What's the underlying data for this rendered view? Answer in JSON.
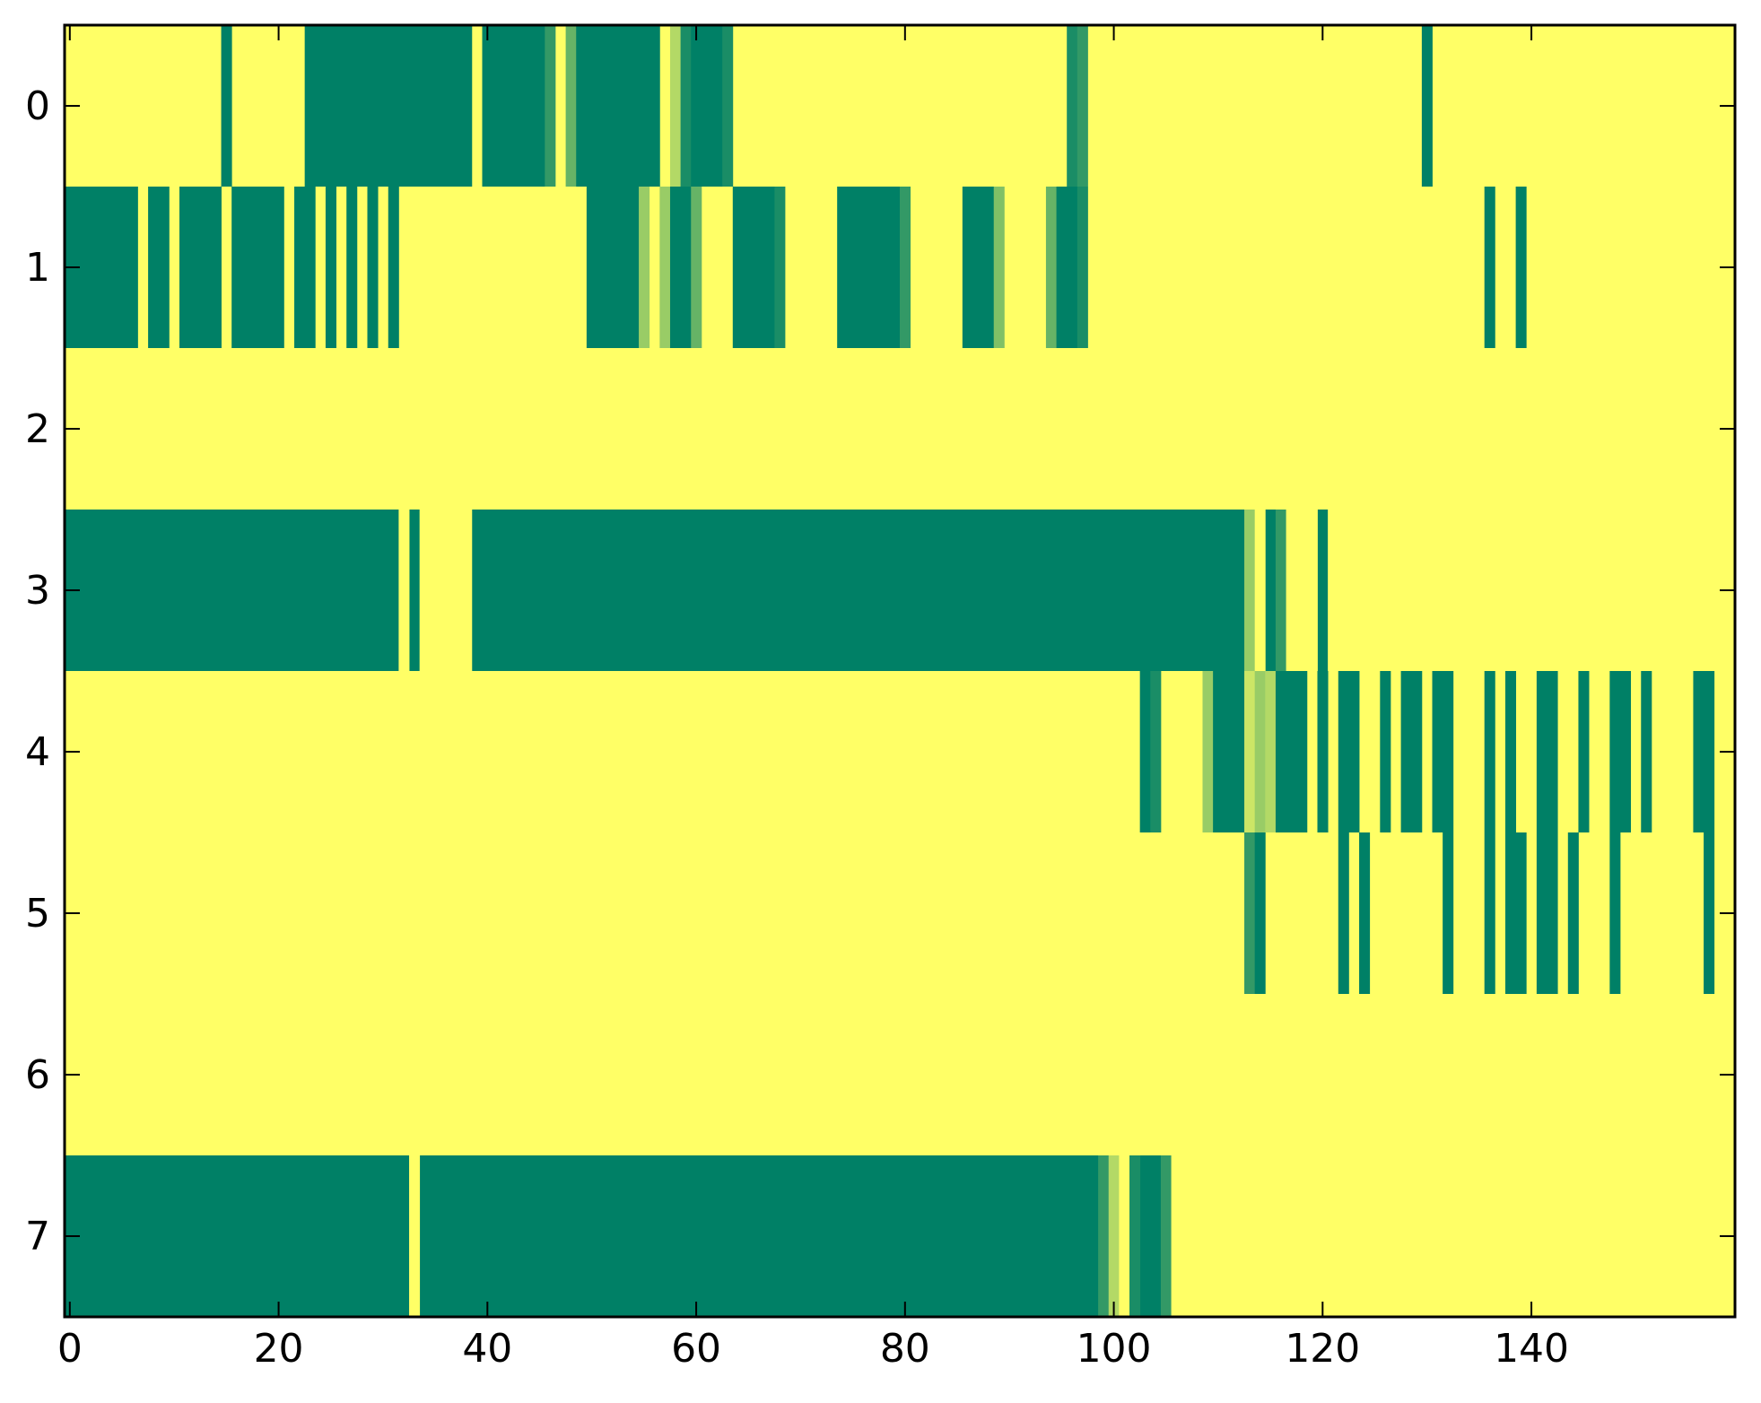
{
  "chart_data": {
    "type": "heatmap",
    "title": "",
    "xlabel": "",
    "ylabel": "",
    "xlim": [
      -0.5,
      159.5
    ],
    "ylim": [
      -0.5,
      7.5
    ],
    "y_inverted": true,
    "grid": false,
    "legend": "none",
    "colormap": "summer_r",
    "colormap_stops": [
      "#ffff66",
      "#008066"
    ],
    "value_range": [
      0,
      1
    ],
    "x_ticks": [
      0,
      20,
      40,
      60,
      80,
      100,
      120,
      140
    ],
    "x_tick_labels": [
      "0",
      "20",
      "40",
      "60",
      "80",
      "100",
      "120",
      "140"
    ],
    "y_ticks": [
      0,
      1,
      2,
      3,
      4,
      5,
      6,
      7
    ],
    "y_tick_labels": [
      "0",
      "1",
      "2",
      "3",
      "4",
      "5",
      "6",
      "7"
    ],
    "rows": [
      {
        "row": 0,
        "default": 0,
        "cells": [
          [
            15,
            15,
            1
          ],
          [
            23,
            38,
            1
          ],
          [
            40,
            45,
            1
          ],
          [
            46,
            46,
            0.8
          ],
          [
            48,
            48,
            0.6
          ],
          [
            49,
            56,
            1
          ],
          [
            58,
            58,
            0.3
          ],
          [
            59,
            59,
            0.9
          ],
          [
            60,
            62,
            1
          ],
          [
            63,
            63,
            0.9
          ],
          [
            96,
            96,
            0.9
          ],
          [
            97,
            97,
            0.8
          ],
          [
            130,
            130,
            1
          ]
        ]
      },
      {
        "row": 1,
        "default": 0,
        "cells": [
          [
            0,
            6,
            1
          ],
          [
            8,
            9,
            1
          ],
          [
            11,
            14,
            1
          ],
          [
            16,
            20,
            1
          ],
          [
            22,
            23,
            1
          ],
          [
            25,
            25,
            1
          ],
          [
            27,
            27,
            1
          ],
          [
            29,
            29,
            1
          ],
          [
            31,
            31,
            1
          ],
          [
            50,
            54,
            1
          ],
          [
            55,
            55,
            0.4
          ],
          [
            57,
            57,
            0.4
          ],
          [
            58,
            59,
            1
          ],
          [
            60,
            60,
            0.6
          ],
          [
            64,
            67,
            1
          ],
          [
            68,
            68,
            0.9
          ],
          [
            74,
            79,
            1
          ],
          [
            80,
            80,
            0.8
          ],
          [
            86,
            88,
            1
          ],
          [
            89,
            89,
            0.5
          ],
          [
            94,
            94,
            0.6
          ],
          [
            95,
            96,
            1
          ],
          [
            97,
            97,
            0.9
          ],
          [
            136,
            136,
            1
          ],
          [
            139,
            139,
            1
          ]
        ]
      },
      {
        "row": 2,
        "default": 0,
        "cells": []
      },
      {
        "row": 3,
        "default": 1,
        "cells": [
          [
            32,
            32,
            0
          ],
          [
            34,
            38,
            0
          ],
          [
            113,
            113,
            0.4
          ],
          [
            114,
            114,
            0
          ],
          [
            116,
            116,
            0.8
          ],
          [
            117,
            119,
            0
          ],
          [
            121,
            159,
            0
          ]
        ]
      },
      {
        "row": 4,
        "default": 0,
        "cells": [
          [
            103,
            103,
            1
          ],
          [
            104,
            104,
            0.9
          ],
          [
            109,
            109,
            0.4
          ],
          [
            110,
            112,
            1
          ],
          [
            113,
            113,
            0.2
          ],
          [
            114,
            114,
            0.4
          ],
          [
            115,
            115,
            0.3
          ],
          [
            116,
            118,
            1
          ],
          [
            120,
            120,
            1
          ],
          [
            122,
            123,
            1
          ],
          [
            126,
            126,
            1
          ],
          [
            128,
            129,
            1
          ],
          [
            131,
            132,
            1
          ],
          [
            136,
            136,
            1
          ],
          [
            138,
            138,
            1
          ],
          [
            141,
            142,
            1
          ],
          [
            145,
            145,
            1
          ],
          [
            148,
            149,
            1
          ],
          [
            151,
            151,
            1
          ],
          [
            156,
            157,
            1
          ]
        ]
      },
      {
        "row": 5,
        "default": 0,
        "cells": [
          [
            113,
            113,
            0.8
          ],
          [
            114,
            114,
            1
          ],
          [
            122,
            122,
            1
          ],
          [
            124,
            124,
            1
          ],
          [
            132,
            132,
            1
          ],
          [
            136,
            136,
            1
          ],
          [
            138,
            139,
            1
          ],
          [
            141,
            142,
            1
          ],
          [
            144,
            144,
            1
          ],
          [
            148,
            148,
            1
          ],
          [
            157,
            157,
            1
          ]
        ]
      },
      {
        "row": 6,
        "default": 0,
        "cells": []
      },
      {
        "row": 7,
        "default": 1,
        "cells": [
          [
            33,
            33,
            0
          ],
          [
            99,
            99,
            0.8
          ],
          [
            100,
            100,
            0.3
          ],
          [
            101,
            101,
            0
          ],
          [
            102,
            102,
            0.9
          ],
          [
            105,
            105,
            0.8
          ],
          [
            106,
            159,
            0
          ]
        ]
      }
    ]
  }
}
